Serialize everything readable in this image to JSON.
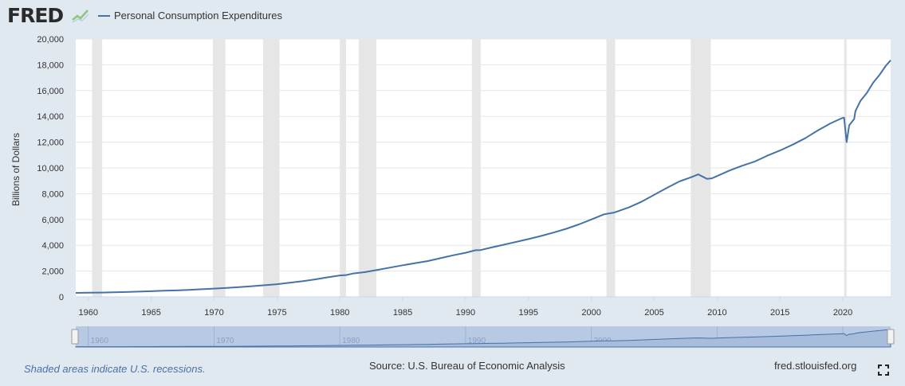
{
  "header": {
    "logo_text": "FRED",
    "logo_icon": "fred-line-chart-icon",
    "legend_label": "Personal Consumption Expenditures",
    "legend_color": "#4572a7"
  },
  "footer": {
    "note": "Shaded areas indicate U.S. recessions.",
    "source": "Source: U.S. Bureau of Economic Analysis",
    "site": "fred.stlouisfed.org",
    "fullscreen_icon": "fullscreen-icon"
  },
  "navigator": {
    "tick_labels": [
      "1960",
      "1970",
      "1980",
      "1990",
      "2000",
      "2010",
      "2020"
    ],
    "handle_icon": "range-handle-icon"
  },
  "chart_data": {
    "type": "line",
    "ylabel": "Billions of Dollars",
    "xlim": [
      1959.0,
      2023.8
    ],
    "ylim": [
      0,
      20000
    ],
    "grid": true,
    "legend_position": "top-left",
    "x_ticks": [
      1960,
      1965,
      1970,
      1975,
      1980,
      1985,
      1990,
      1995,
      2000,
      2005,
      2010,
      2015,
      2020
    ],
    "y_ticks": [
      0,
      2000,
      4000,
      6000,
      8000,
      10000,
      12000,
      14000,
      16000,
      18000,
      20000
    ],
    "y_tick_labels": [
      "0",
      "2,000",
      "4,000",
      "6,000",
      "8,000",
      "10,000",
      "12,000",
      "14,000",
      "16,000",
      "18,000",
      "20,000"
    ],
    "recessions": [
      [
        1960.3,
        1961.1
      ],
      [
        1969.9,
        1970.9
      ],
      [
        1973.9,
        1975.2
      ],
      [
        1980.0,
        1980.5
      ],
      [
        1981.5,
        1982.9
      ],
      [
        1990.5,
        1991.2
      ],
      [
        2001.2,
        2001.9
      ],
      [
        2007.9,
        2009.5
      ],
      [
        2020.1,
        2020.3
      ]
    ],
    "series": [
      {
        "name": "Personal Consumption Expenditures",
        "color": "#4572a7",
        "points": [
          [
            1959.0,
            306
          ],
          [
            1960.0,
            325
          ],
          [
            1961.0,
            335
          ],
          [
            1962.0,
            355
          ],
          [
            1963.0,
            375
          ],
          [
            1964.0,
            405
          ],
          [
            1965.0,
            440
          ],
          [
            1966.0,
            475
          ],
          [
            1967.0,
            500
          ],
          [
            1968.0,
            545
          ],
          [
            1969.0,
            590
          ],
          [
            1970.0,
            640
          ],
          [
            1971.0,
            690
          ],
          [
            1972.0,
            755
          ],
          [
            1973.0,
            830
          ],
          [
            1974.0,
            900
          ],
          [
            1975.0,
            980
          ],
          [
            1976.0,
            1090
          ],
          [
            1977.0,
            1210
          ],
          [
            1978.0,
            1350
          ],
          [
            1979.0,
            1510
          ],
          [
            1980.0,
            1660
          ],
          [
            1980.5,
            1690
          ],
          [
            1981.0,
            1800
          ],
          [
            1982.0,
            1920
          ],
          [
            1983.0,
            2090
          ],
          [
            1984.0,
            2270
          ],
          [
            1985.0,
            2450
          ],
          [
            1986.0,
            2620
          ],
          [
            1987.0,
            2780
          ],
          [
            1988.0,
            3000
          ],
          [
            1989.0,
            3220
          ],
          [
            1990.0,
            3420
          ],
          [
            1990.8,
            3620
          ],
          [
            1991.2,
            3630
          ],
          [
            1992.0,
            3820
          ],
          [
            1993.0,
            4040
          ],
          [
            1994.0,
            4260
          ],
          [
            1995.0,
            4480
          ],
          [
            1996.0,
            4720
          ],
          [
            1997.0,
            4990
          ],
          [
            1998.0,
            5280
          ],
          [
            1999.0,
            5620
          ],
          [
            2000.0,
            6000
          ],
          [
            2001.0,
            6400
          ],
          [
            2001.8,
            6540
          ],
          [
            2002.0,
            6600
          ],
          [
            2003.0,
            6950
          ],
          [
            2004.0,
            7380
          ],
          [
            2005.0,
            7920
          ],
          [
            2006.0,
            8450
          ],
          [
            2007.0,
            8950
          ],
          [
            2008.0,
            9300
          ],
          [
            2008.5,
            9500
          ],
          [
            2008.9,
            9300
          ],
          [
            2009.2,
            9150
          ],
          [
            2009.6,
            9200
          ],
          [
            2010.0,
            9370
          ],
          [
            2011.0,
            9800
          ],
          [
            2012.0,
            10170
          ],
          [
            2013.0,
            10500
          ],
          [
            2014.0,
            10950
          ],
          [
            2015.0,
            11350
          ],
          [
            2016.0,
            11800
          ],
          [
            2017.0,
            12300
          ],
          [
            2018.0,
            12900
          ],
          [
            2019.0,
            13450
          ],
          [
            2019.9,
            13850
          ],
          [
            2020.1,
            13900
          ],
          [
            2020.3,
            12000
          ],
          [
            2020.5,
            13300
          ],
          [
            2020.9,
            13800
          ],
          [
            2021.0,
            14400
          ],
          [
            2021.4,
            15200
          ],
          [
            2021.9,
            15800
          ],
          [
            2022.4,
            16600
          ],
          [
            2022.9,
            17200
          ],
          [
            2023.4,
            17900
          ],
          [
            2023.8,
            18350
          ]
        ]
      }
    ]
  }
}
